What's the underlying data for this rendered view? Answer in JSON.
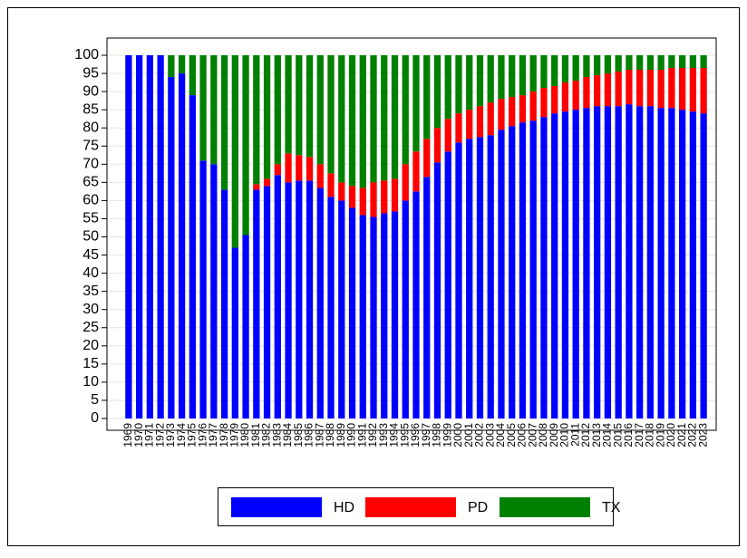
{
  "chart_data": {
    "type": "stacked_bar",
    "categories": [
      "1969",
      "1970",
      "1971",
      "1972",
      "1973",
      "1974",
      "1975",
      "1976",
      "1977",
      "1978",
      "1979",
      "1980",
      "1981",
      "1982",
      "1983",
      "1984",
      "1985",
      "1986",
      "1987",
      "1988",
      "1989",
      "1990",
      "1991",
      "1992",
      "1993",
      "1994",
      "1995",
      "1996",
      "1997",
      "1998",
      "1999",
      "2000",
      "2001",
      "2002",
      "2003",
      "2004",
      "2005",
      "2006",
      "2007",
      "2008",
      "2009",
      "2010",
      "2011",
      "2012",
      "2013",
      "2014",
      "2015",
      "2016",
      "2017",
      "2018",
      "2019",
      "2020",
      "2021",
      "2022",
      "2023"
    ],
    "series": [
      {
        "name": "HD",
        "color": "#0000ff",
        "values": [
          100,
          100,
          100,
          100,
          94,
          95,
          89,
          71,
          70,
          63,
          47,
          50.5,
          63,
          64,
          67,
          65,
          65.5,
          65.5,
          63.5,
          61,
          60,
          58,
          56,
          55.5,
          56.5,
          57,
          60,
          62.5,
          66.5,
          70.5,
          73.5,
          76,
          77,
          77.5,
          78,
          79.5,
          80.5,
          81.5,
          82,
          83,
          84,
          84.5,
          85,
          85.5,
          86,
          86,
          86,
          86.5,
          86,
          86,
          85.5,
          85.5,
          85,
          84.5,
          84
        ]
      },
      {
        "name": "PD",
        "color": "#ff0000",
        "values": [
          0,
          0,
          0,
          0,
          0,
          0,
          0,
          0,
          0,
          0,
          0,
          0,
          1.5,
          2,
          3,
          8,
          7,
          6.5,
          6.5,
          6.5,
          5,
          6,
          7.5,
          9.5,
          9,
          9,
          10,
          11,
          10.5,
          9.5,
          9,
          8,
          8,
          8.5,
          9,
          8.5,
          8,
          7.5,
          8,
          8,
          7.5,
          8,
          8,
          8.5,
          8.5,
          9,
          9.5,
          9.5,
          10,
          10,
          10.5,
          11,
          11.5,
          12,
          12.5
        ]
      },
      {
        "name": "TX",
        "color": "#008000",
        "values": [
          0,
          0,
          0,
          0,
          6,
          5,
          11,
          29,
          30,
          37,
          53,
          49.5,
          35.5,
          34,
          30,
          27,
          27.5,
          28,
          30,
          32.5,
          35,
          36,
          36.5,
          35,
          34.5,
          34,
          30,
          26.5,
          23,
          20,
          17.5,
          16,
          15,
          14,
          13,
          12,
          11.5,
          11,
          10,
          9,
          8.5,
          7.5,
          7,
          6,
          5.5,
          5,
          4.5,
          4,
          4,
          4,
          4,
          3.5,
          3.5,
          3.5,
          3.5
        ]
      }
    ],
    "ylim": [
      0,
      100
    ],
    "yticks": [
      0,
      5,
      10,
      15,
      20,
      25,
      30,
      35,
      40,
      45,
      50,
      55,
      60,
      65,
      70,
      75,
      80,
      85,
      90,
      95,
      100
    ],
    "grid": true,
    "legend": "bottom"
  }
}
